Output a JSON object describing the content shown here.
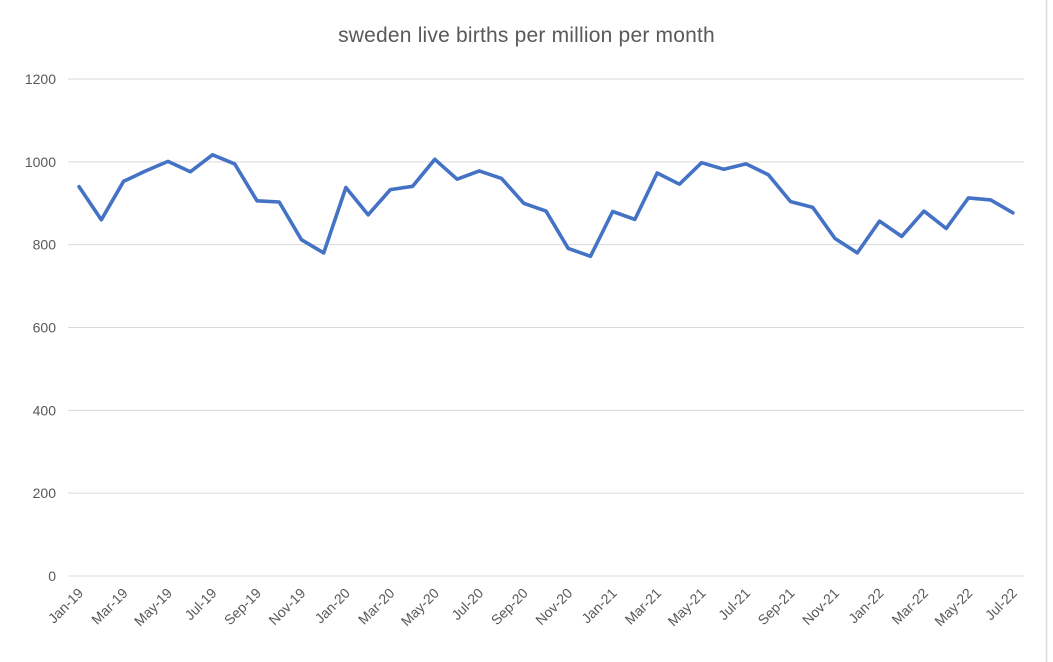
{
  "chart_data": {
    "type": "line",
    "title": "sweden live births per million per month",
    "x": [
      "Jan-19",
      "Feb-19",
      "Mar-19",
      "Apr-19",
      "May-19",
      "Jun-19",
      "Jul-19",
      "Aug-19",
      "Sep-19",
      "Oct-19",
      "Nov-19",
      "Dec-19",
      "Jan-20",
      "Feb-20",
      "Mar-20",
      "Apr-20",
      "May-20",
      "Jun-20",
      "Jul-20",
      "Aug-20",
      "Sep-20",
      "Oct-20",
      "Nov-20",
      "Dec-20",
      "Jan-21",
      "Feb-21",
      "Mar-21",
      "Apr-21",
      "May-21",
      "Jun-21",
      "Jul-21",
      "Aug-21",
      "Sep-21",
      "Oct-21",
      "Nov-21",
      "Dec-21",
      "Jan-22",
      "Feb-22",
      "Mar-22",
      "Apr-22",
      "May-22",
      "Jun-22",
      "Jul-22"
    ],
    "values": [
      940,
      860,
      953,
      978,
      1001,
      976,
      1017,
      995,
      906,
      903,
      812,
      780,
      938,
      872,
      933,
      941,
      1006,
      958,
      978,
      960,
      900,
      881,
      791,
      772,
      880,
      861,
      973,
      946,
      998,
      982,
      995,
      969,
      904,
      890,
      815,
      780,
      857,
      820,
      881,
      839,
      913,
      908,
      877
    ],
    "xlabel": "",
    "ylabel": "",
    "ylim": [
      0,
      1200
    ],
    "yticks": [
      0,
      200,
      400,
      600,
      800,
      1000,
      1200
    ],
    "xtick_every": 2,
    "xtick_labels_visible": [
      "Jan-19",
      "Mar-19",
      "May-19",
      "Jul-19",
      "Sep-19",
      "Nov-19",
      "Jan-20",
      "Mar-20",
      "May-20",
      "Jul-20",
      "Sep-20",
      "Nov-20",
      "Jan-21",
      "Mar-21",
      "May-21",
      "Jul-21",
      "Sep-21",
      "Nov-21",
      "Jan-22",
      "Mar-22",
      "May-22",
      "Jul-22"
    ],
    "grid": "horizontal",
    "legend": "none",
    "line_color": "#4472c4",
    "gridline_color": "#d9d9d9",
    "text_color": "#595959",
    "background_color": "#ffffff"
  }
}
